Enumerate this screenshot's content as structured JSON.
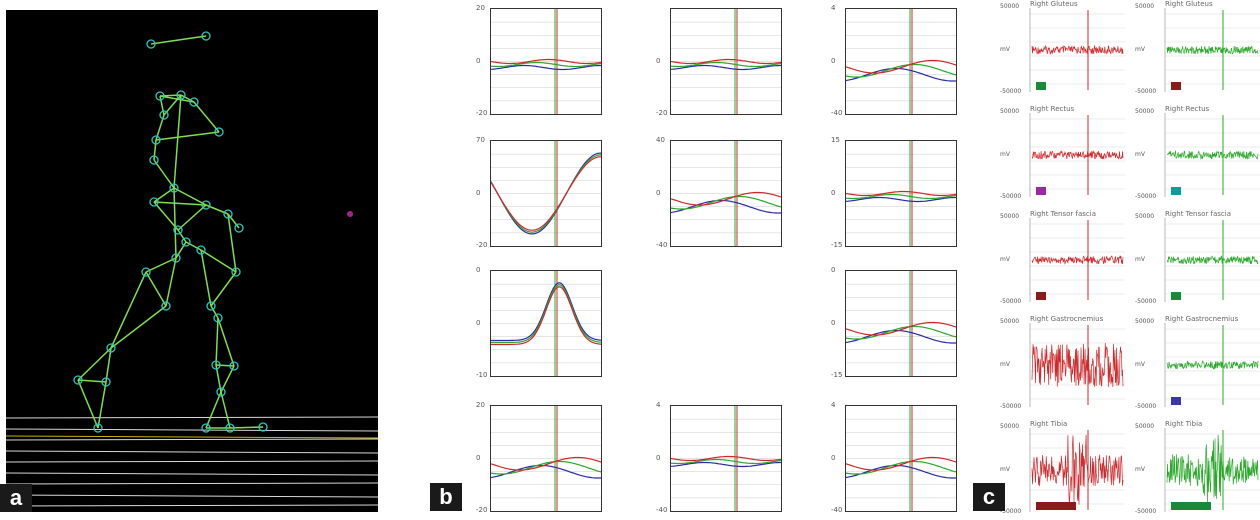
{
  "panels": {
    "a": {
      "letter": "a"
    },
    "b": {
      "letter": "b"
    },
    "c": {
      "letter": "c"
    }
  },
  "colors": {
    "skeleton": "#7de04a",
    "joint": "#25c9c0",
    "red": "#d0282a",
    "green": "#2aa82a",
    "blue": "#2a2aa8",
    "marker_maroon": "#8b1a1a",
    "marker_purple": "#9b2aa0",
    "marker_teal": "#109a9a",
    "marker_green": "#1a8a3a",
    "marker_navy": "#3a3aa0"
  },
  "plot_grid": {
    "rows": [
      [
        {
          "top": "20",
          "mid": "0",
          "bot": "-20"
        },
        {
          "top": "",
          "mid": "0",
          "bot": "-20"
        },
        {
          "top": "4",
          "mid": "0",
          "bot": "-40"
        }
      ],
      [
        {
          "top": "70",
          "mid": "0",
          "bot": "-20"
        },
        {
          "top": "40",
          "mid": "0",
          "bot": "-40"
        },
        {
          "top": "15",
          "mid": "0",
          "bot": "-15"
        }
      ],
      [
        {
          "top": "0",
          "mid": "0",
          "bot": "-10"
        },
        null,
        {
          "top": "0",
          "mid": "0",
          "bot": "-15"
        }
      ],
      [
        {
          "top": "20",
          "mid": "0",
          "bot": "-20"
        },
        {
          "top": "4",
          "mid": "0",
          "bot": "-40"
        },
        {
          "top": "4",
          "mid": "0",
          "bot": "-40"
        }
      ]
    ]
  },
  "emg": {
    "left": [
      {
        "title": "Right Gluteus",
        "top": "50000",
        "mid": "mV",
        "bot": "-50000"
      },
      {
        "title": "Right Rectus",
        "top": "50000",
        "mid": "mV",
        "bot": "-50000"
      },
      {
        "title": "Right Tensor fascia",
        "top": "50000",
        "mid": "mV",
        "bot": "-50000"
      },
      {
        "title": "Right Gastrocnemius",
        "top": "50000",
        "mid": "mV",
        "bot": "-50000"
      },
      {
        "title": "Right Tibia",
        "top": "50000",
        "mid": "mV",
        "bot": "-50000"
      }
    ],
    "right": [
      {
        "title": "Right Gluteus",
        "top": "50000",
        "mid": "mV",
        "bot": "-50000"
      },
      {
        "title": "Right Rectus",
        "top": "50000",
        "mid": "mV",
        "bot": "-50000"
      },
      {
        "title": "Right Tensor fascia",
        "top": "50000",
        "mid": "mV",
        "bot": "-50000"
      },
      {
        "title": "Right Gastrocnemius",
        "top": "50000",
        "mid": "mV",
        "bot": "-50000"
      },
      {
        "title": "Right Tibia",
        "top": "50000",
        "mid": "mV",
        "bot": "-50000"
      }
    ]
  }
}
